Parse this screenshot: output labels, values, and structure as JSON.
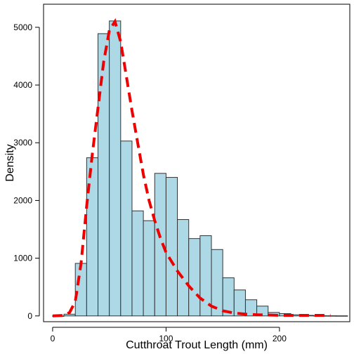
{
  "chart_data": {
    "type": "bar",
    "title": "",
    "xlabel": "Cutthroat Trout Length (mm)",
    "ylabel": "Density",
    "xlim": [
      -8,
      262
    ],
    "ylim": [
      -100,
      5400
    ],
    "x_ticks": [
      0,
      100,
      200
    ],
    "y_ticks": [
      0,
      1000,
      2000,
      3000,
      4000,
      5000
    ],
    "bin_width": 10,
    "bins": [
      {
        "x0": 0,
        "x1": 10,
        "value": 0
      },
      {
        "x0": 10,
        "x1": 20,
        "value": 30
      },
      {
        "x0": 20,
        "x1": 30,
        "value": 910
      },
      {
        "x0": 30,
        "x1": 40,
        "value": 2740
      },
      {
        "x0": 40,
        "x1": 50,
        "value": 4890
      },
      {
        "x0": 50,
        "x1": 60,
        "value": 5110
      },
      {
        "x0": 60,
        "x1": 70,
        "value": 3030
      },
      {
        "x0": 70,
        "x1": 80,
        "value": 1820
      },
      {
        "x0": 80,
        "x1": 90,
        "value": 1650
      },
      {
        "x0": 90,
        "x1": 100,
        "value": 2470
      },
      {
        "x0": 100,
        "x1": 110,
        "value": 2400
      },
      {
        "x0": 110,
        "x1": 120,
        "value": 1670
      },
      {
        "x0": 120,
        "x1": 130,
        "value": 1340
      },
      {
        "x0": 130,
        "x1": 140,
        "value": 1390
      },
      {
        "x0": 140,
        "x1": 150,
        "value": 1150
      },
      {
        "x0": 150,
        "x1": 160,
        "value": 660
      },
      {
        "x0": 160,
        "x1": 170,
        "value": 450
      },
      {
        "x0": 170,
        "x1": 180,
        "value": 280
      },
      {
        "x0": 180,
        "x1": 190,
        "value": 170
      },
      {
        "x0": 190,
        "x1": 200,
        "value": 60
      },
      {
        "x0": 200,
        "x1": 210,
        "value": 40
      },
      {
        "x0": 210,
        "x1": 220,
        "value": 20
      },
      {
        "x0": 220,
        "x1": 230,
        "value": 10
      },
      {
        "x0": 230,
        "x1": 240,
        "value": 5
      },
      {
        "x0": 240,
        "x1": 250,
        "value": 3
      },
      {
        "x0": 250,
        "x1": 260,
        "value": 2
      }
    ],
    "density_curve": {
      "x": [
        0,
        10,
        15,
        20,
        25,
        30,
        35,
        40,
        45,
        50,
        55,
        60,
        65,
        70,
        75,
        80,
        85,
        90,
        95,
        100,
        110,
        120,
        130,
        140,
        150,
        160,
        170,
        180,
        190,
        200,
        210,
        220,
        230,
        245
      ],
      "y": [
        0,
        10,
        60,
        250,
        900,
        1900,
        2800,
        3600,
        4400,
        4950,
        5100,
        4750,
        4150,
        3550,
        3000,
        2450,
        2000,
        1650,
        1350,
        1100,
        780,
        520,
        310,
        170,
        90,
        50,
        30,
        20,
        15,
        10,
        10,
        10,
        10,
        10
      ],
      "color": "#ee0000",
      "style": "dashed"
    },
    "bar_fill": "#add8e6",
    "bar_stroke": "#333333",
    "grid": false,
    "legend": "none"
  }
}
